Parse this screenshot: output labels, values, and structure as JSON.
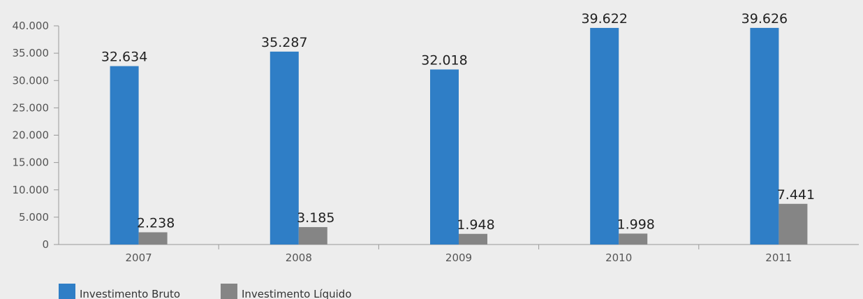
{
  "chart_data": {
    "type": "bar",
    "categories": [
      "2007",
      "2008",
      "2009",
      "2010",
      "2011"
    ],
    "series": [
      {
        "name": "Investimento Bruto",
        "values": [
          32634,
          35287,
          32018,
          39622,
          39626
        ],
        "labels": [
          "32.634",
          "35.287",
          "32.018",
          "39.622",
          "39.626"
        ],
        "color": "#2f7ec6"
      },
      {
        "name": "Investimento Líquido",
        "values": [
          2238,
          3185,
          1948,
          1998,
          7441
        ],
        "labels": [
          "2.238",
          "3.185",
          "1.948",
          "1.998",
          "7.441"
        ],
        "color": "#858585"
      }
    ],
    "ylim": [
      0,
      40000
    ],
    "yticks": [
      0,
      5000,
      10000,
      15000,
      20000,
      25000,
      30000,
      35000,
      40000
    ],
    "ytick_labels": [
      "0",
      "5.000",
      "10.000",
      "15.000",
      "20.000",
      "25.000",
      "30.000",
      "35.000",
      "40.000"
    ],
    "grid": false,
    "legend_position": "bottom-left",
    "axis_color": "#999999"
  }
}
